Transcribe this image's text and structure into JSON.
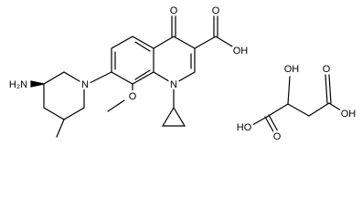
{
  "atoms": [
    "O",
    "O",
    "OH",
    "N",
    "O",
    "N",
    "H₂N",
    "HO",
    "O",
    "OH",
    "O",
    "OH"
  ]
}
